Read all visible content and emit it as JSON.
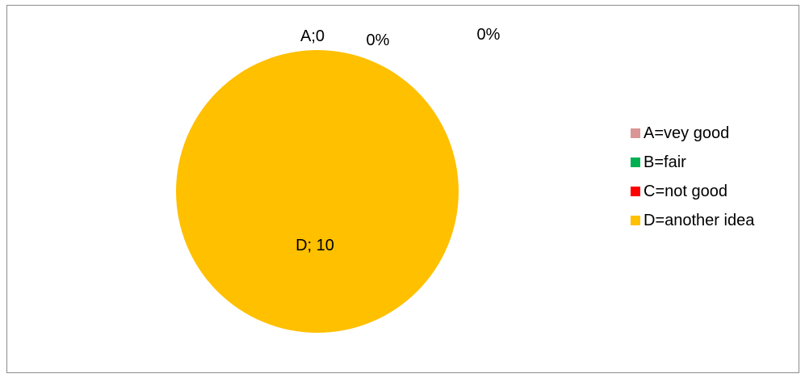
{
  "chart_data": {
    "type": "pie",
    "title": "",
    "slices": [
      {
        "name": "A=vey good",
        "value": 0,
        "color": "#d99694"
      },
      {
        "name": "B=fair",
        "value": 0,
        "color": "#00b050"
      },
      {
        "name": "C=not good",
        "value": 0,
        "color": "#ff0000"
      },
      {
        "name": "D=another idea",
        "value": 10,
        "color": "#ffc000"
      }
    ],
    "data_labels": [
      "A;0",
      "0%",
      "0%",
      "D; 10"
    ],
    "legend_position": "right"
  }
}
